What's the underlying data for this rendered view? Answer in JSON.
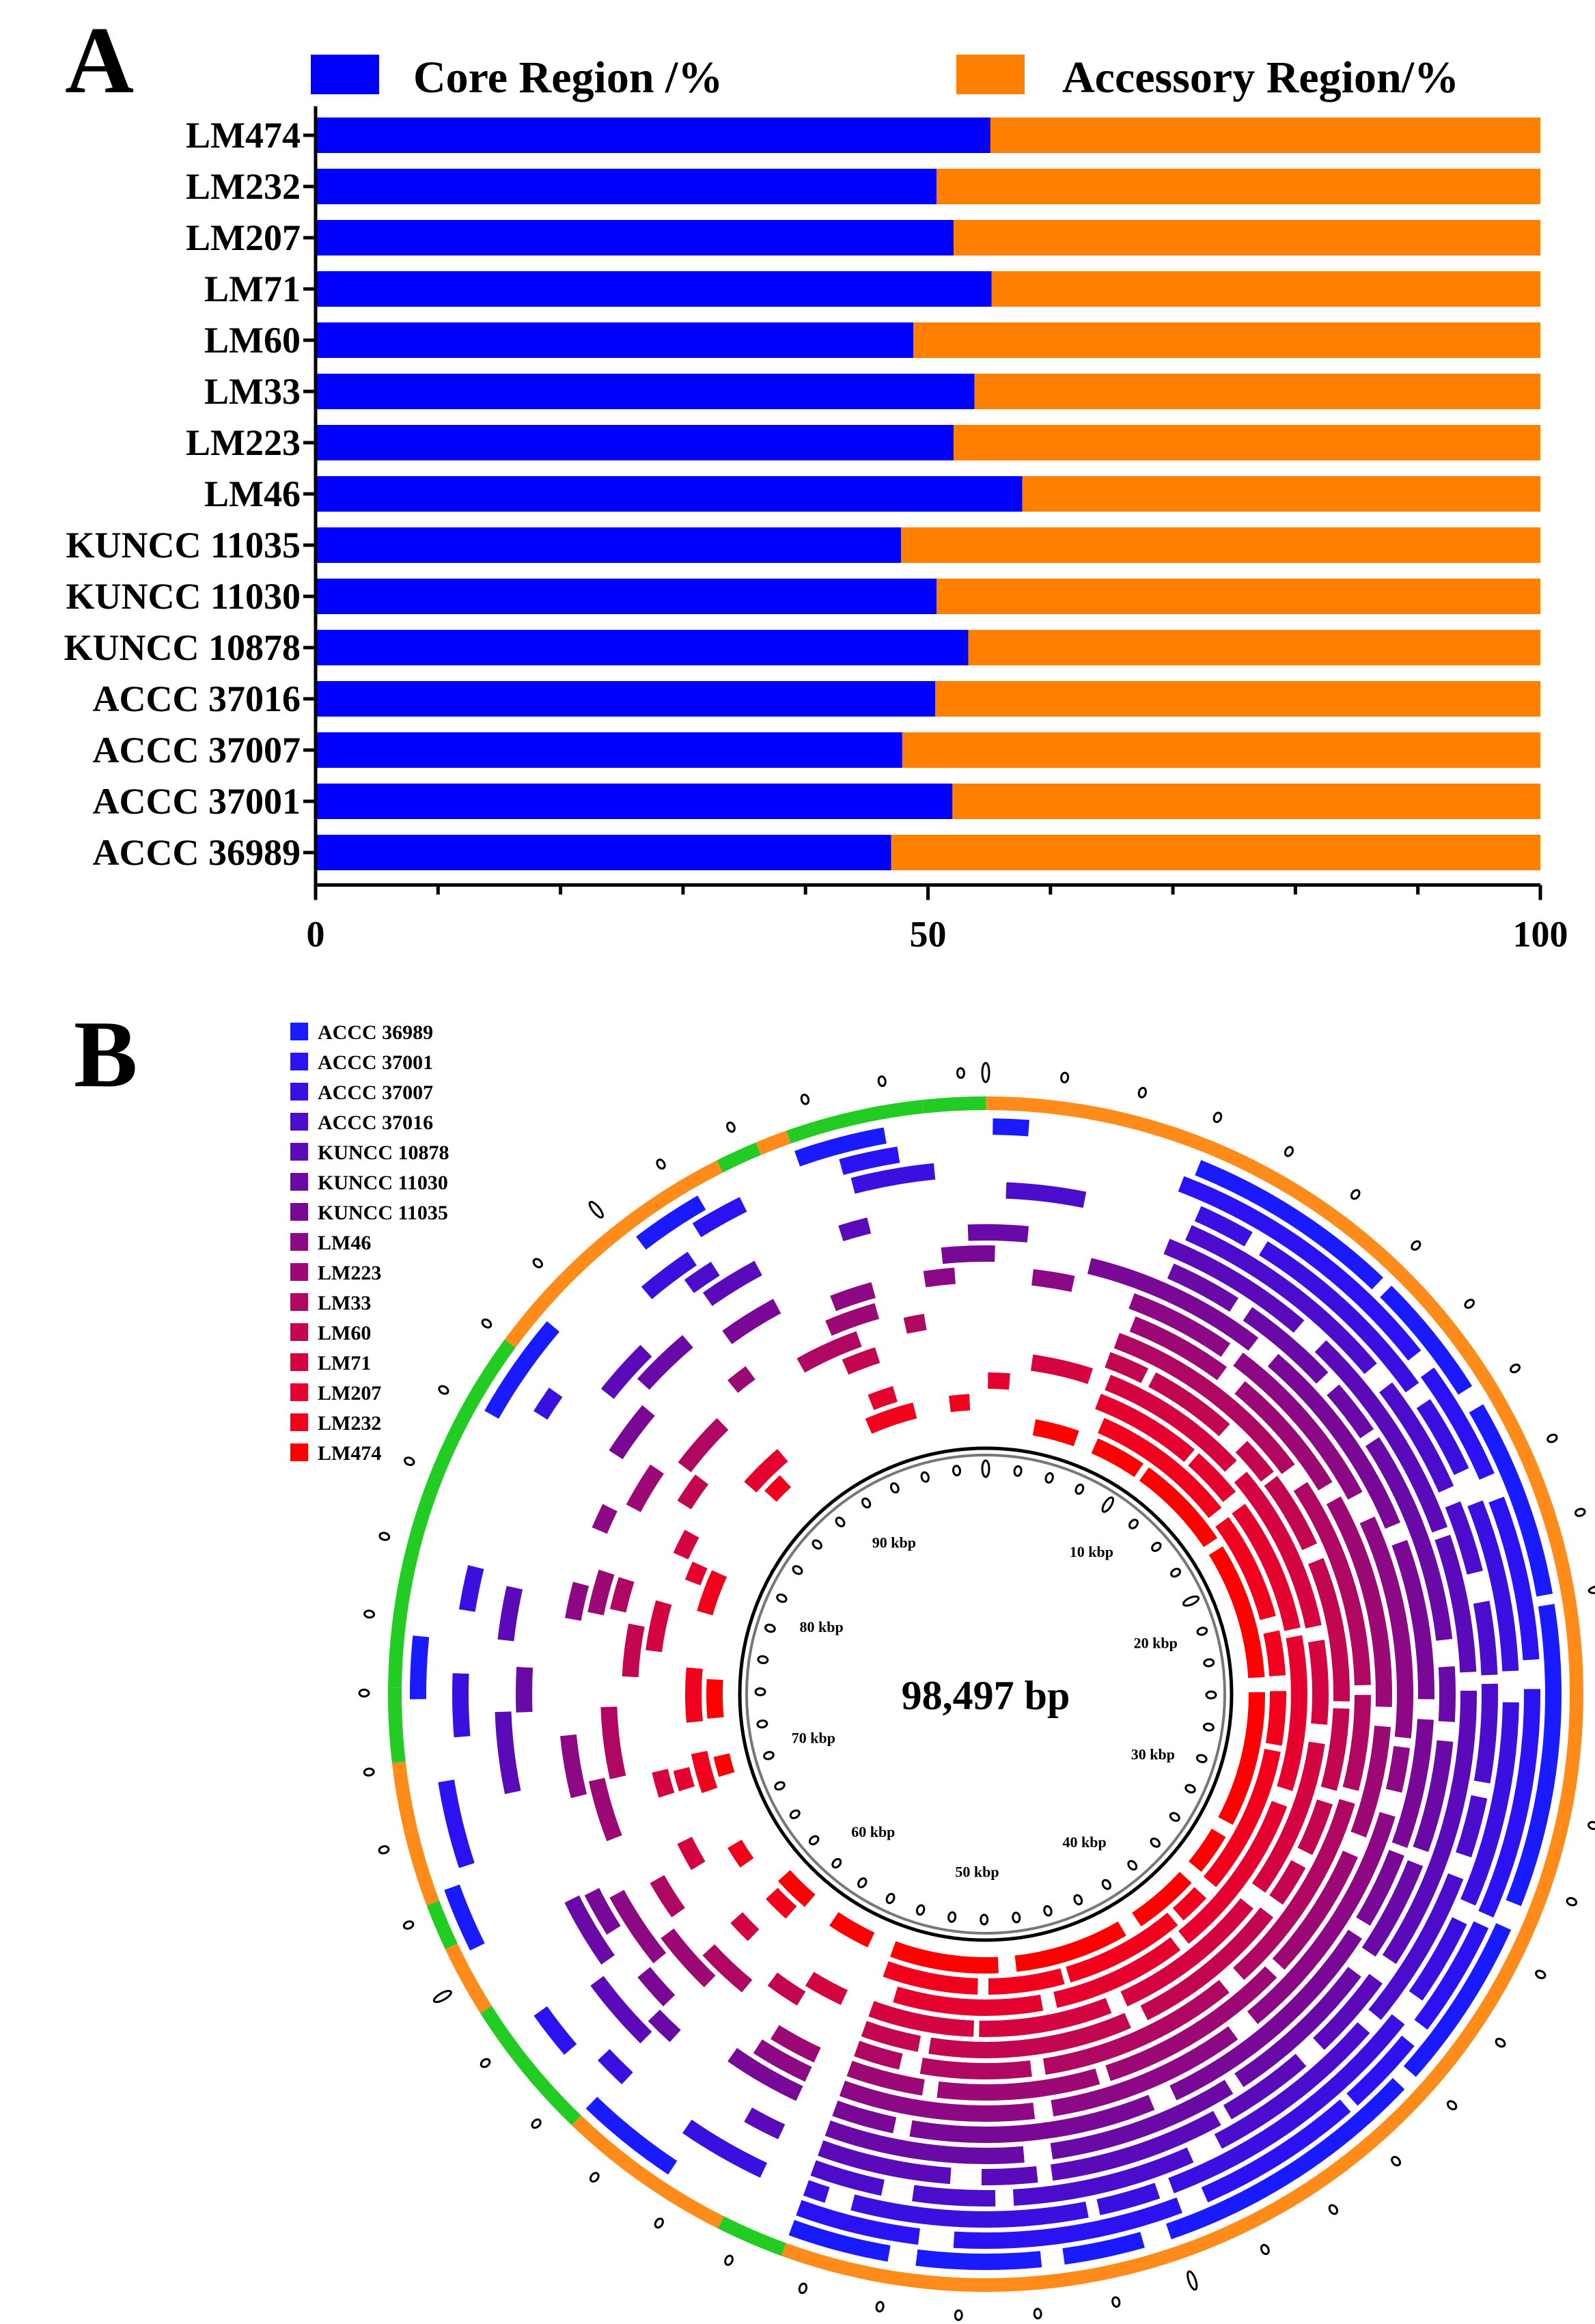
{
  "panel_a": {
    "letter": "A",
    "chart_data": {
      "type": "bar",
      "orientation": "horizontal",
      "stacked": true,
      "categories": [
        "LM474",
        "LM232",
        "LM207",
        "LM71",
        "LM60",
        "LM33",
        "LM223",
        "LM46",
        "KUNCC 11035",
        "KUNCC 11030",
        "KUNCC 10878",
        "ACCC 37016",
        "ACCC 37007",
        "ACCC 37001",
        "ACCC 36989"
      ],
      "series": [
        {
          "name": "Core Region /%",
          "color": "#0000ff",
          "values": [
            55.1,
            50.7,
            52.1,
            55.2,
            48.8,
            53.8,
            52.1,
            57.7,
            47.8,
            50.7,
            53.3,
            50.6,
            47.9,
            52.0,
            47.0
          ]
        },
        {
          "name": "Accessory Region/%",
          "color": "#ff8000",
          "values": [
            44.9,
            49.3,
            47.9,
            44.8,
            51.2,
            46.2,
            47.9,
            42.3,
            52.2,
            49.3,
            46.7,
            49.4,
            52.1,
            48.0,
            53.0
          ]
        }
      ],
      "xlim": [
        0,
        100
      ],
      "x_ticks": [
        "0",
        "50",
        "100"
      ],
      "xlabel": "",
      "ylabel": "",
      "legend_position": "top"
    }
  },
  "panel_b": {
    "letter": "B",
    "center_label": "98,497 bp",
    "ring_labels": [
      "10 kbp",
      "20 kbp",
      "30 kbp",
      "40 kbp",
      "50 kbp",
      "60 kbp",
      "70 kbp",
      "80 kbp",
      "90 kbp"
    ],
    "legend": [
      {
        "label": "ACCC 36989",
        "color": "#1a1aff"
      },
      {
        "label": "ACCC 37001",
        "color": "#2a12f2"
      },
      {
        "label": "ACCC 37007",
        "color": "#3a10e0"
      },
      {
        "label": "ACCC 37016",
        "color": "#4b0ccc"
      },
      {
        "label": "KUNCC 10878",
        "color": "#5a0ab8"
      },
      {
        "label": "KUNCC 11030",
        "color": "#6a0aa6"
      },
      {
        "label": "KUNCC 11035",
        "color": "#7a0896"
      },
      {
        "label": "LM46",
        "color": "#8c0884"
      },
      {
        "label": "LM223",
        "color": "#9c0874"
      },
      {
        "label": "LM33",
        "color": "#b00862"
      },
      {
        "label": "LM60",
        "color": "#c20650"
      },
      {
        "label": "LM71",
        "color": "#d40440"
      },
      {
        "label": "LM207",
        "color": "#e6022e"
      },
      {
        "label": "LM232",
        "color": "#f2011c"
      },
      {
        "label": "LM474",
        "color": "#ff0000"
      }
    ],
    "outer_ring_colors": {
      "core": "#ff8c1a",
      "accessory": "#22cc22"
    }
  }
}
